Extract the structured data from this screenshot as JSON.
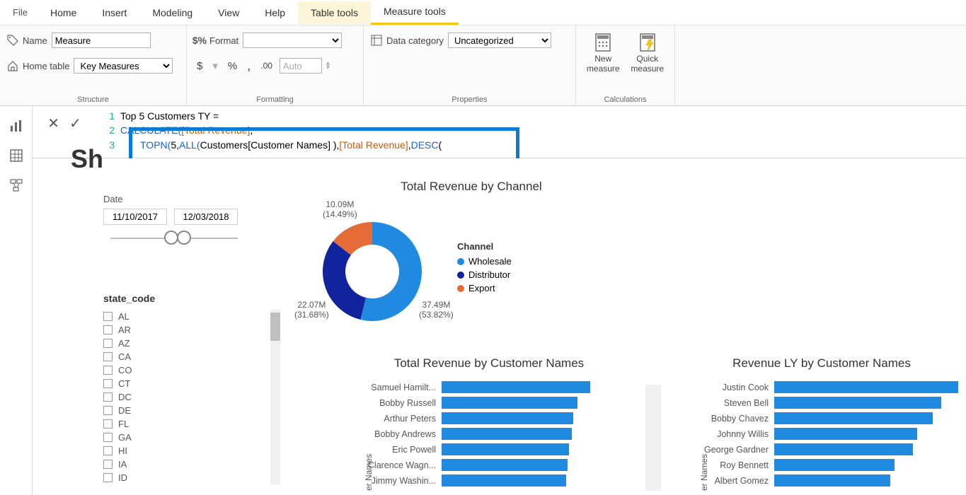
{
  "menubar": {
    "file": "File",
    "items": [
      "Home",
      "Insert",
      "Modeling",
      "View",
      "Help",
      "Table tools",
      "Measure tools"
    ],
    "active_index": 6,
    "secondary_index": 5
  },
  "ribbon": {
    "structure": {
      "name_label": "Name",
      "name_value": "Measure",
      "home_table_label": "Home table",
      "home_table_value": "Key Measures",
      "group_label": "Structure"
    },
    "formatting": {
      "format_label": "Format",
      "format_value": "",
      "currency": "$",
      "percent": "%",
      "comma": ",",
      "decimals": ".00",
      "auto": "Auto",
      "group_label": "Formatting"
    },
    "properties": {
      "category_label": "Data category",
      "category_value": "Uncategorized",
      "group_label": "Properties"
    },
    "calculations": {
      "new_measure": "New measure",
      "quick_measure": "Quick measure",
      "group_label": "Calculations"
    }
  },
  "formula": {
    "line1_no": "1",
    "line1_text": "Top 5 Customers TY =",
    "line2_no": "2",
    "line2_a": "CALCULATE(",
    "line2_b": "[Total Revenue]",
    "line2_c": ",",
    "line3_no": "3",
    "line3_a": "TOPN(",
    "line3_b": " 5, ",
    "line3_c": "ALL(",
    "line3_d": " Customers[Customer Names] ), ",
    "line3_e": "[Total Revenue]",
    "line3_f": ", ",
    "line3_g": "DESC",
    "line3_h": " ("
  },
  "sh_text": "Sh",
  "date_filter": {
    "label": "Date",
    "start": "11/10/2017",
    "end": "12/03/2018"
  },
  "state_filter": {
    "label": "state_code",
    "options": [
      "AL",
      "AR",
      "AZ",
      "CA",
      "CO",
      "CT",
      "DC",
      "DE",
      "FL",
      "GA",
      "HI",
      "IA",
      "ID"
    ]
  },
  "donut": {
    "title": "Total Revenue by Channel",
    "legend_title": "Channel",
    "slices": [
      {
        "label": "Wholesale",
        "value": 37.49,
        "pct": 53.82,
        "color": "#1f8ae0"
      },
      {
        "label": "Distributor",
        "value": 22.07,
        "pct": 31.68,
        "color": "#12239e"
      },
      {
        "label": "Export",
        "value": 10.09,
        "pct": 14.49,
        "color": "#e66c37"
      }
    ],
    "label_wholesale": "37.49M\n(53.82%)",
    "label_distributor": "22.07M\n(31.68%)",
    "label_export": "10.09M\n(14.49%)"
  },
  "bar_left": {
    "title": "Total Revenue by Customer Names",
    "axis": "er Names",
    "color": "#1f8ae0",
    "max": 210,
    "rows": [
      {
        "name": "Samuel Hamilt...",
        "value": 210
      },
      {
        "name": "Bobby Russell",
        "value": 192
      },
      {
        "name": "Arthur Peters",
        "value": 186
      },
      {
        "name": "Bobby Andrews",
        "value": 184
      },
      {
        "name": "Eric Powell",
        "value": 180
      },
      {
        "name": "Clarence Wagn...",
        "value": 178
      },
      {
        "name": "Jimmy Washin...",
        "value": 176
      }
    ]
  },
  "bar_right": {
    "title": "Revenue LY by Customer Names",
    "axis": "er Names",
    "color": "#1f8ae0",
    "max": 260,
    "rows": [
      {
        "name": "Justin Cook",
        "value": 260
      },
      {
        "name": "Steven Bell",
        "value": 236
      },
      {
        "name": "Bobby Chavez",
        "value": 224
      },
      {
        "name": "Johnny Willis",
        "value": 202
      },
      {
        "name": "George Gardner",
        "value": 196
      },
      {
        "name": "Roy Bennett",
        "value": 170
      },
      {
        "name": "Albert Gomez",
        "value": 164
      }
    ]
  },
  "colors": {
    "accent": "#f2c811",
    "bar": "#1f8ae0"
  }
}
